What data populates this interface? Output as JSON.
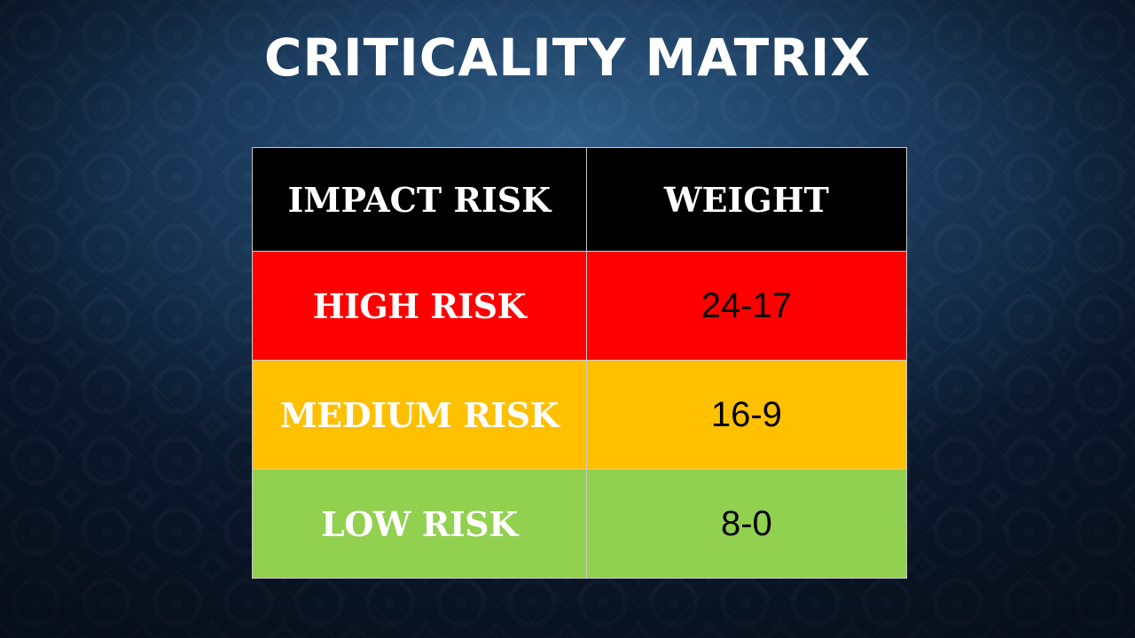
{
  "slide": {
    "title": "CRITICALITY MATRIX"
  },
  "table": {
    "headers": [
      "IMPACT RISK",
      "WEIGHT"
    ],
    "rows": [
      {
        "risk": "HIGH RISK",
        "weight": "24-17",
        "color": "#ff0000"
      },
      {
        "risk": "MEDIUM RISK",
        "weight": "16-9",
        "color": "#ffc000"
      },
      {
        "risk": "LOW RISK",
        "weight": "8-0",
        "color": "#92d050"
      }
    ],
    "header_color": "#000000"
  }
}
